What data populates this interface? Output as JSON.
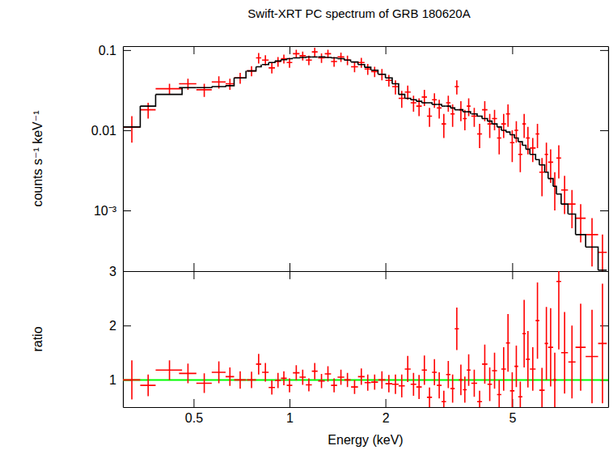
{
  "chart_data": [
    {
      "type": "scatter",
      "title": "Swift-XRT PC spectrum of GRB 180620A",
      "ylabel": "counts s⁻¹ keV⁻¹",
      "log": true,
      "tick_labels": "y",
      "xlim": [
        0.3,
        10
      ],
      "ylim": [
        0.000175,
        0.112
      ],
      "xticks": [
        0.5,
        1,
        2,
        5
      ],
      "yticks": [
        0.1,
        0.01,
        {
          "value": 0.001,
          "label": "10⁻³"
        }
      ],
      "x": [
        0.32,
        0.36,
        0.42,
        0.48,
        0.54,
        0.6,
        0.65,
        0.7,
        0.76,
        0.8,
        0.84,
        0.88,
        0.92,
        0.96,
        1.0,
        1.05,
        1.1,
        1.15,
        1.2,
        1.26,
        1.32,
        1.38,
        1.45,
        1.52,
        1.6,
        1.68,
        1.76,
        1.85,
        1.95,
        2.05,
        2.15,
        2.25,
        2.35,
        2.45,
        2.55,
        2.65,
        2.75,
        2.85,
        2.95,
        3.05,
        3.15,
        3.25,
        3.35,
        3.45,
        3.55,
        3.65,
        3.8,
        3.95,
        4.1,
        4.25,
        4.4,
        4.55,
        4.7,
        4.85,
        5.0,
        5.15,
        5.3,
        5.45,
        5.6,
        5.8,
        6.0,
        6.2,
        6.4,
        6.6,
        6.8,
        7.0,
        7.3,
        7.7,
        8.2,
        8.9,
        9.6
      ],
      "x_errors": [
        0.02,
        0.02,
        0.04,
        0.03,
        0.03,
        0.03,
        0.02,
        0.03,
        0.025,
        0.015,
        0.02,
        0.02,
        0.02,
        0.02,
        0.02,
        0.025,
        0.025,
        0.025,
        0.025,
        0.03,
        0.03,
        0.03,
        0.035,
        0.035,
        0.04,
        0.04,
        0.04,
        0.045,
        0.05,
        0.05,
        0.05,
        0.05,
        0.05,
        0.05,
        0.05,
        0.05,
        0.05,
        0.05,
        0.05,
        0.05,
        0.05,
        0.05,
        0.05,
        0.05,
        0.05,
        0.05,
        0.08,
        0.07,
        0.08,
        0.07,
        0.08,
        0.07,
        0.08,
        0.07,
        0.08,
        0.07,
        0.08,
        0.07,
        0.08,
        0.12,
        0.08,
        0.12,
        0.08,
        0.12,
        0.08,
        0.12,
        0.18,
        0.2,
        0.3,
        0.4,
        0.3
      ],
      "series": [
        {
          "type": "scatter",
          "color": "#ff0000",
          "values": [
            0.011,
            0.018,
            0.033,
            0.038,
            0.032,
            0.04,
            0.038,
            0.045,
            0.055,
            0.08,
            0.075,
            0.06,
            0.072,
            0.078,
            0.07,
            0.09,
            0.085,
            0.075,
            0.095,
            0.08,
            0.09,
            0.072,
            0.082,
            0.075,
            0.062,
            0.07,
            0.058,
            0.054,
            0.05,
            0.042,
            0.035,
            0.025,
            0.03,
            0.022,
            0.02,
            0.026,
            0.015,
            0.024,
            0.019,
            0.012,
            0.022,
            0.016,
            0.035,
            0.018,
            0.014,
            0.02,
            0.015,
            0.009,
            0.018,
            0.012,
            0.014,
            0.008,
            0.012,
            0.016,
            0.007,
            0.01,
            0.005,
            0.012,
            0.008,
            0.006,
            0.009,
            0.003,
            0.005,
            0.004,
            0.002,
            0.0045,
            0.0018,
            0.0012,
            0.0008,
            0.0005,
            0.0003
          ],
          "errors": [
            0.004,
            0.004,
            0.005,
            0.006,
            0.006,
            0.007,
            0.006,
            0.007,
            0.008,
            0.012,
            0.011,
            0.009,
            0.01,
            0.01,
            0.01,
            0.011,
            0.011,
            0.01,
            0.012,
            0.011,
            0.011,
            0.01,
            0.011,
            0.01,
            0.009,
            0.01,
            0.009,
            0.008,
            0.008,
            0.007,
            0.007,
            0.006,
            0.006,
            0.005,
            0.005,
            0.006,
            0.004,
            0.005,
            0.005,
            0.004,
            0.005,
            0.005,
            0.007,
            0.005,
            0.004,
            0.005,
            0.004,
            0.003,
            0.005,
            0.004,
            0.004,
            0.003,
            0.004,
            0.005,
            0.003,
            0.003,
            0.002,
            0.004,
            0.003,
            0.002,
            0.003,
            0.0015,
            0.002,
            0.0018,
            0.001,
            0.002,
            0.0009,
            0.0006,
            0.0004,
            0.0003,
            0.0002
          ]
        },
        {
          "type": "step",
          "color": "#000000",
          "values": [
            0.011,
            0.02,
            0.028,
            0.034,
            0.034,
            0.035,
            0.036,
            0.045,
            0.055,
            0.062,
            0.066,
            0.07,
            0.073,
            0.076,
            0.078,
            0.08,
            0.081,
            0.082,
            0.082,
            0.082,
            0.081,
            0.08,
            0.078,
            0.075,
            0.071,
            0.066,
            0.061,
            0.056,
            0.05,
            0.045,
            0.038,
            0.028,
            0.025,
            0.024,
            0.023,
            0.022,
            0.022,
            0.021,
            0.021,
            0.02,
            0.02,
            0.019,
            0.018,
            0.018,
            0.017,
            0.017,
            0.016,
            0.015,
            0.014,
            0.013,
            0.012,
            0.011,
            0.01,
            0.0095,
            0.0088,
            0.008,
            0.0072,
            0.0065,
            0.0058,
            0.005,
            0.0043,
            0.0037,
            0.003,
            0.0025,
            0.002,
            0.0016,
            0.0012,
            0.0009,
            0.0005,
            0.00035,
            0.00018
          ]
        }
      ]
    },
    {
      "type": "scatter",
      "xlabel": "Energy (keV)",
      "ylabel": "ratio",
      "log": "x",
      "xlim": [
        0.3,
        10
      ],
      "ylim": [
        0.5,
        3
      ],
      "xticks": [
        0.5,
        1,
        2,
        5
      ],
      "yticks": [
        1,
        2,
        3
      ],
      "x": [
        0.32,
        0.36,
        0.42,
        0.48,
        0.54,
        0.6,
        0.65,
        0.7,
        0.76,
        0.8,
        0.84,
        0.88,
        0.92,
        0.96,
        1.0,
        1.05,
        1.1,
        1.15,
        1.2,
        1.26,
        1.32,
        1.38,
        1.45,
        1.52,
        1.6,
        1.68,
        1.76,
        1.85,
        1.95,
        2.05,
        2.15,
        2.25,
        2.35,
        2.45,
        2.55,
        2.65,
        2.75,
        2.85,
        2.95,
        3.05,
        3.15,
        3.25,
        3.35,
        3.45,
        3.55,
        3.65,
        3.8,
        3.95,
        4.1,
        4.25,
        4.4,
        4.55,
        4.7,
        4.85,
        5.0,
        5.15,
        5.3,
        5.45,
        5.6,
        5.8,
        6.0,
        6.2,
        6.4,
        6.6,
        6.8,
        7.0,
        7.3,
        7.7,
        8.2,
        8.9,
        9.6
      ],
      "x_errors": [
        0.02,
        0.02,
        0.04,
        0.03,
        0.03,
        0.03,
        0.02,
        0.03,
        0.025,
        0.015,
        0.02,
        0.02,
        0.02,
        0.02,
        0.02,
        0.025,
        0.025,
        0.025,
        0.025,
        0.03,
        0.03,
        0.03,
        0.035,
        0.035,
        0.04,
        0.04,
        0.04,
        0.045,
        0.05,
        0.05,
        0.05,
        0.05,
        0.05,
        0.05,
        0.05,
        0.05,
        0.05,
        0.05,
        0.05,
        0.05,
        0.05,
        0.05,
        0.05,
        0.05,
        0.05,
        0.05,
        0.08,
        0.07,
        0.08,
        0.07,
        0.08,
        0.07,
        0.08,
        0.07,
        0.08,
        0.07,
        0.08,
        0.07,
        0.08,
        0.12,
        0.08,
        0.12,
        0.08,
        0.12,
        0.08,
        0.12,
        0.18,
        0.2,
        0.3,
        0.4,
        0.3
      ],
      "series": [
        {
          "type": "scatter",
          "color": "#ff0000",
          "values": [
            1.0,
            0.9,
            1.18,
            1.12,
            0.94,
            1.14,
            1.06,
            1.0,
            1.0,
            1.29,
            1.14,
            0.86,
            0.99,
            1.03,
            0.9,
            1.13,
            1.05,
            0.91,
            1.16,
            0.98,
            1.11,
            0.9,
            1.05,
            1.0,
            0.87,
            1.06,
            0.95,
            0.96,
            1.0,
            0.93,
            0.92,
            0.89,
            1.2,
            0.92,
            0.87,
            1.18,
            0.68,
            1.14,
            0.9,
            0.6,
            1.1,
            0.84,
            1.94,
            1.0,
            0.82,
            1.18,
            0.94,
            0.6,
            1.29,
            0.92,
            1.17,
            0.73,
            1.2,
            1.68,
            0.8,
            1.25,
            0.69,
            1.85,
            1.38,
            1.2,
            2.09,
            0.81,
            1.67,
            1.6,
            1.0,
            2.81,
            1.5,
            1.33,
            1.6,
            1.43,
            1.67
          ],
          "errors": [
            0.36,
            0.2,
            0.18,
            0.18,
            0.18,
            0.2,
            0.17,
            0.16,
            0.15,
            0.19,
            0.17,
            0.13,
            0.14,
            0.13,
            0.13,
            0.14,
            0.14,
            0.12,
            0.15,
            0.13,
            0.14,
            0.13,
            0.14,
            0.13,
            0.13,
            0.15,
            0.15,
            0.14,
            0.16,
            0.16,
            0.18,
            0.21,
            0.24,
            0.21,
            0.22,
            0.27,
            0.18,
            0.24,
            0.24,
            0.2,
            0.25,
            0.26,
            0.39,
            0.28,
            0.24,
            0.29,
            0.25,
            0.2,
            0.36,
            0.31,
            0.33,
            0.27,
            0.4,
            0.53,
            0.34,
            0.38,
            0.28,
            0.62,
            0.52,
            0.4,
            0.7,
            0.41,
            0.67,
            0.72,
            0.5,
            1.25,
            0.75,
            0.67,
            0.8,
            0.86,
            1.1
          ]
        }
      ],
      "reference_line": {
        "value": 1,
        "color": "#00ff00"
      }
    }
  ]
}
